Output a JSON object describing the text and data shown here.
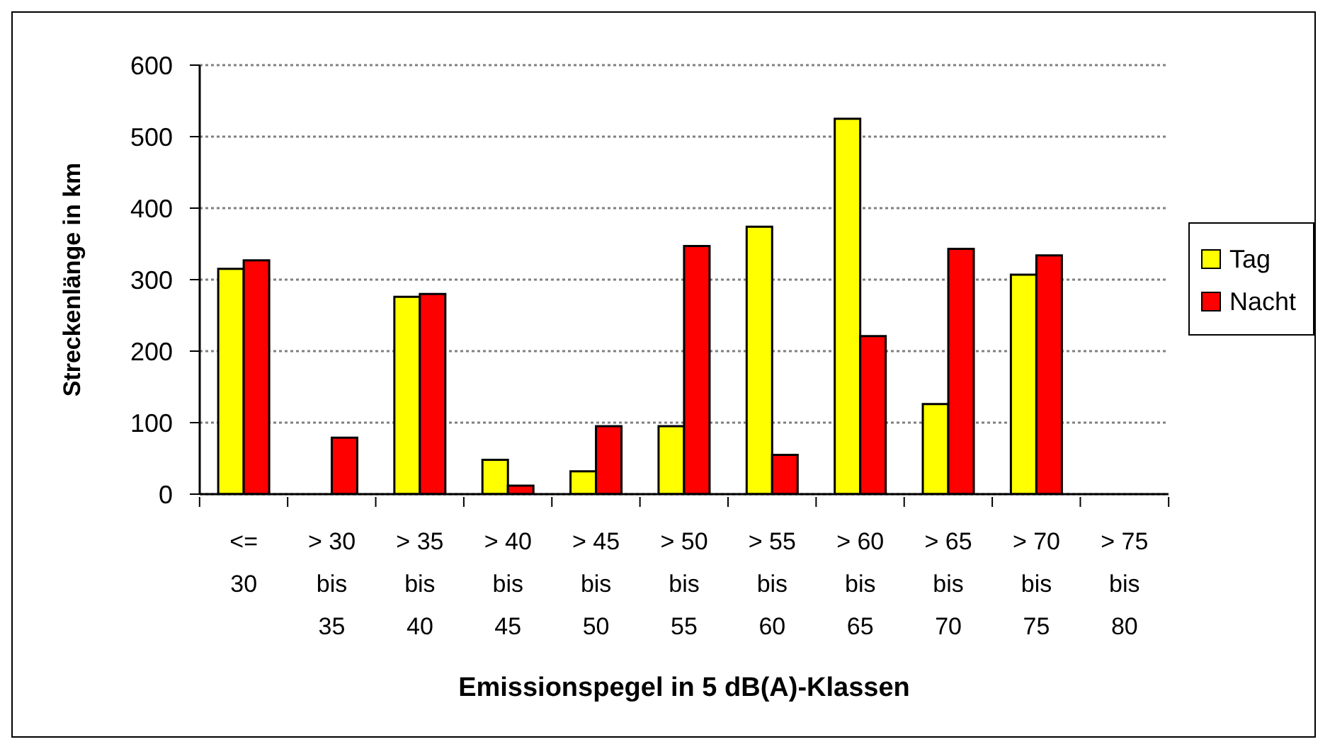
{
  "chart_data": {
    "type": "bar",
    "categories": [
      "<=\n30",
      "> 30\nbis\n35",
      "> 35\nbis\n40",
      "> 40\nbis\n45",
      "> 45\nbis\n50",
      "> 50\nbis\n55",
      "> 55\nbis\n60",
      "> 60\nbis\n65",
      "> 65\nbis\n70",
      "> 70\nbis\n75",
      "> 75\nbis\n80"
    ],
    "series": [
      {
        "name": "Tag",
        "color": "#ffff00",
        "values": [
          315,
          0,
          276,
          48,
          32,
          95,
          374,
          525,
          126,
          307,
          0
        ]
      },
      {
        "name": "Nacht",
        "color": "#ff0000",
        "values": [
          327,
          79,
          280,
          12,
          95,
          347,
          55,
          221,
          343,
          334,
          0
        ]
      }
    ],
    "xlabel": "Emissionspegel in 5 dB(A)-Klassen",
    "ylabel": "Streckenlänge in km",
    "ylim": [
      0,
      600
    ],
    "yticks": [
      0,
      100,
      200,
      300,
      400,
      500,
      600
    ],
    "grid": "y",
    "legend": "right"
  }
}
